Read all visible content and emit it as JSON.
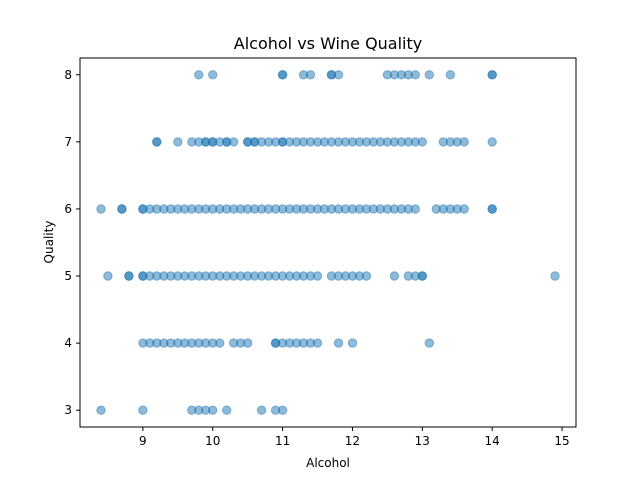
{
  "chart_data": {
    "type": "scatter",
    "title": "Alcohol vs Wine Quality",
    "xlabel": "Alcohol",
    "ylabel": "Quality",
    "xlim": [
      8.1,
      15.2
    ],
    "ylim": [
      2.75,
      8.25
    ],
    "xticks": [
      9,
      10,
      11,
      12,
      13,
      14,
      15
    ],
    "yticks": [
      3,
      4,
      5,
      6,
      7,
      8
    ],
    "grid": false,
    "marker_color": "#1f77b4",
    "marker_alpha": 0.5,
    "series": [
      {
        "points": [
          [
            9.8,
            8
          ],
          [
            10.0,
            8
          ],
          [
            11.0,
            8
          ],
          [
            11.0,
            8
          ],
          [
            11.3,
            8
          ],
          [
            11.4,
            8
          ],
          [
            11.7,
            8
          ],
          [
            11.7,
            8
          ],
          [
            11.8,
            8
          ],
          [
            12.5,
            8
          ],
          [
            12.6,
            8
          ],
          [
            12.7,
            8
          ],
          [
            12.8,
            8
          ],
          [
            12.9,
            8
          ],
          [
            13.1,
            8
          ],
          [
            13.4,
            8
          ],
          [
            14.0,
            8
          ],
          [
            14.0,
            8
          ],
          [
            9.2,
            7
          ],
          [
            9.2,
            7
          ],
          [
            9.5,
            7
          ],
          [
            9.7,
            7
          ],
          [
            9.8,
            7
          ],
          [
            9.9,
            7
          ],
          [
            9.9,
            7
          ],
          [
            10.0,
            7
          ],
          [
            10.0,
            7
          ],
          [
            10.1,
            7
          ],
          [
            10.2,
            7
          ],
          [
            10.2,
            7
          ],
          [
            10.3,
            7
          ],
          [
            10.5,
            7
          ],
          [
            10.5,
            7
          ],
          [
            10.6,
            7
          ],
          [
            10.6,
            7
          ],
          [
            10.7,
            7
          ],
          [
            10.8,
            7
          ],
          [
            10.9,
            7
          ],
          [
            11.0,
            7
          ],
          [
            11.0,
            7
          ],
          [
            11.1,
            7
          ],
          [
            11.2,
            7
          ],
          [
            11.3,
            7
          ],
          [
            11.4,
            7
          ],
          [
            11.5,
            7
          ],
          [
            11.6,
            7
          ],
          [
            11.7,
            7
          ],
          [
            11.8,
            7
          ],
          [
            11.9,
            7
          ],
          [
            12.0,
            7
          ],
          [
            12.1,
            7
          ],
          [
            12.2,
            7
          ],
          [
            12.3,
            7
          ],
          [
            12.4,
            7
          ],
          [
            12.5,
            7
          ],
          [
            12.6,
            7
          ],
          [
            12.7,
            7
          ],
          [
            12.8,
            7
          ],
          [
            12.9,
            7
          ],
          [
            13.0,
            7
          ],
          [
            13.3,
            7
          ],
          [
            13.4,
            7
          ],
          [
            13.5,
            7
          ],
          [
            13.6,
            7
          ],
          [
            14.0,
            7
          ],
          [
            8.4,
            6
          ],
          [
            8.7,
            6
          ],
          [
            8.7,
            6
          ],
          [
            9.0,
            6
          ],
          [
            9.0,
            6
          ],
          [
            9.1,
            6
          ],
          [
            9.2,
            6
          ],
          [
            9.3,
            6
          ],
          [
            9.4,
            6
          ],
          [
            9.5,
            6
          ],
          [
            9.6,
            6
          ],
          [
            9.7,
            6
          ],
          [
            9.8,
            6
          ],
          [
            9.9,
            6
          ],
          [
            10.0,
            6
          ],
          [
            10.1,
            6
          ],
          [
            10.2,
            6
          ],
          [
            10.3,
            6
          ],
          [
            10.4,
            6
          ],
          [
            10.5,
            6
          ],
          [
            10.6,
            6
          ],
          [
            10.7,
            6
          ],
          [
            10.8,
            6
          ],
          [
            10.9,
            6
          ],
          [
            11.0,
            6
          ],
          [
            11.1,
            6
          ],
          [
            11.2,
            6
          ],
          [
            11.3,
            6
          ],
          [
            11.4,
            6
          ],
          [
            11.5,
            6
          ],
          [
            11.6,
            6
          ],
          [
            11.7,
            6
          ],
          [
            11.8,
            6
          ],
          [
            11.9,
            6
          ],
          [
            12.0,
            6
          ],
          [
            12.1,
            6
          ],
          [
            12.2,
            6
          ],
          [
            12.3,
            6
          ],
          [
            12.4,
            6
          ],
          [
            12.5,
            6
          ],
          [
            12.6,
            6
          ],
          [
            12.7,
            6
          ],
          [
            12.8,
            6
          ],
          [
            12.9,
            6
          ],
          [
            13.2,
            6
          ],
          [
            13.3,
            6
          ],
          [
            13.4,
            6
          ],
          [
            13.5,
            6
          ],
          [
            13.6,
            6
          ],
          [
            14.0,
            6
          ],
          [
            14.0,
            6
          ],
          [
            8.5,
            5
          ],
          [
            8.8,
            5
          ],
          [
            8.8,
            5
          ],
          [
            9.0,
            5
          ],
          [
            9.0,
            5
          ],
          [
            9.1,
            5
          ],
          [
            9.2,
            5
          ],
          [
            9.3,
            5
          ],
          [
            9.4,
            5
          ],
          [
            9.5,
            5
          ],
          [
            9.6,
            5
          ],
          [
            9.7,
            5
          ],
          [
            9.8,
            5
          ],
          [
            9.9,
            5
          ],
          [
            10.0,
            5
          ],
          [
            10.1,
            5
          ],
          [
            10.2,
            5
          ],
          [
            10.3,
            5
          ],
          [
            10.4,
            5
          ],
          [
            10.5,
            5
          ],
          [
            10.6,
            5
          ],
          [
            10.7,
            5
          ],
          [
            10.8,
            5
          ],
          [
            10.9,
            5
          ],
          [
            11.0,
            5
          ],
          [
            11.1,
            5
          ],
          [
            11.2,
            5
          ],
          [
            11.3,
            5
          ],
          [
            11.4,
            5
          ],
          [
            11.5,
            5
          ],
          [
            11.7,
            5
          ],
          [
            11.8,
            5
          ],
          [
            11.9,
            5
          ],
          [
            12.0,
            5
          ],
          [
            12.1,
            5
          ],
          [
            12.2,
            5
          ],
          [
            12.6,
            5
          ],
          [
            12.8,
            5
          ],
          [
            12.9,
            5
          ],
          [
            13.0,
            5
          ],
          [
            13.0,
            5
          ],
          [
            14.9,
            5
          ],
          [
            9.0,
            4
          ],
          [
            9.1,
            4
          ],
          [
            9.2,
            4
          ],
          [
            9.3,
            4
          ],
          [
            9.4,
            4
          ],
          [
            9.5,
            4
          ],
          [
            9.6,
            4
          ],
          [
            9.7,
            4
          ],
          [
            9.8,
            4
          ],
          [
            9.9,
            4
          ],
          [
            10.0,
            4
          ],
          [
            10.1,
            4
          ],
          [
            10.3,
            4
          ],
          [
            10.4,
            4
          ],
          [
            10.5,
            4
          ],
          [
            10.9,
            4
          ],
          [
            10.9,
            4
          ],
          [
            11.0,
            4
          ],
          [
            11.1,
            4
          ],
          [
            11.2,
            4
          ],
          [
            11.3,
            4
          ],
          [
            11.4,
            4
          ],
          [
            11.5,
            4
          ],
          [
            11.8,
            4
          ],
          [
            12.0,
            4
          ],
          [
            13.1,
            4
          ],
          [
            8.4,
            3
          ],
          [
            9.0,
            3
          ],
          [
            9.7,
            3
          ],
          [
            9.8,
            3
          ],
          [
            9.9,
            3
          ],
          [
            10.0,
            3
          ],
          [
            10.2,
            3
          ],
          [
            10.7,
            3
          ],
          [
            10.9,
            3
          ],
          [
            11.0,
            3
          ]
        ]
      }
    ]
  }
}
